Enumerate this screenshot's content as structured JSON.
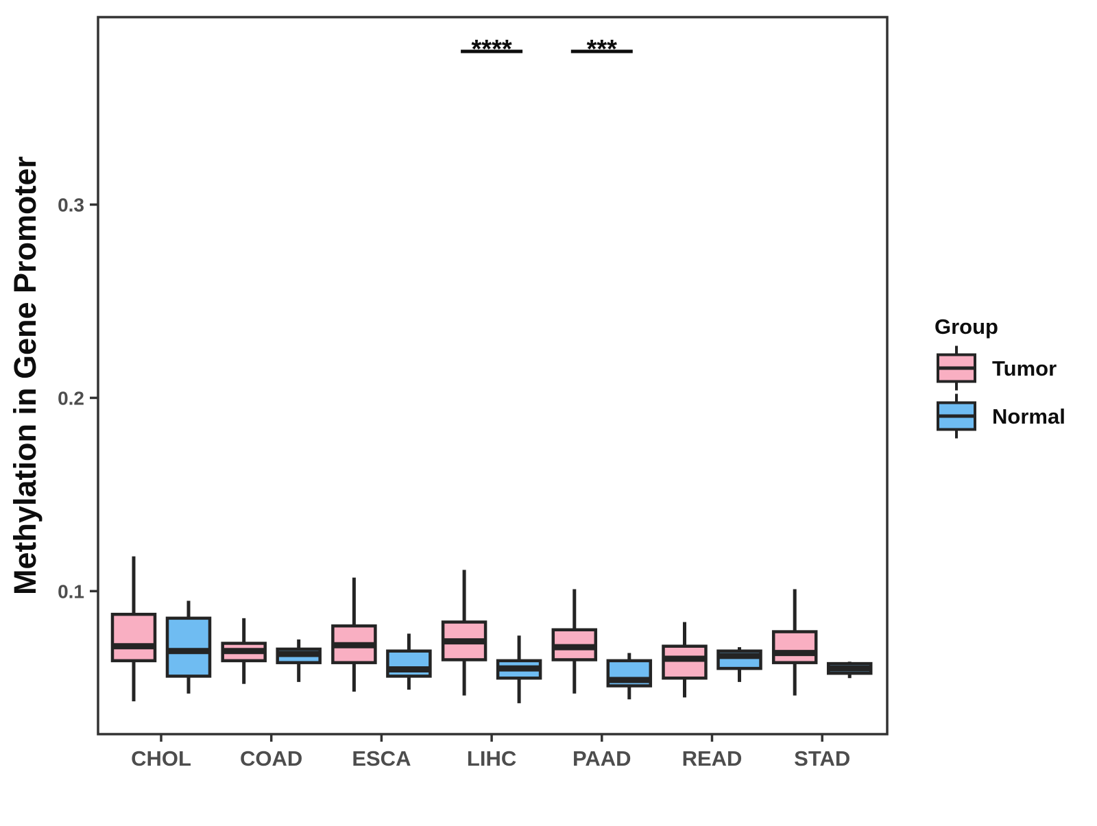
{
  "chart_data": {
    "type": "boxplot",
    "title": "",
    "xlabel": "",
    "ylabel": "Methylation in Gene Promoter",
    "categories": [
      "CHOL",
      "COAD",
      "ESCA",
      "LIHC",
      "PAAD",
      "READ",
      "STAD"
    ],
    "series": [
      {
        "name": "Tumor",
        "color": "#F9AFC2",
        "boxes": [
          {
            "category": "CHOL",
            "low": 0.043,
            "q1": 0.064,
            "median": 0.0715,
            "q3": 0.088,
            "high": 0.118
          },
          {
            "category": "COAD",
            "low": 0.052,
            "q1": 0.064,
            "median": 0.069,
            "q3": 0.073,
            "high": 0.086
          },
          {
            "category": "ESCA",
            "low": 0.048,
            "q1": 0.063,
            "median": 0.072,
            "q3": 0.082,
            "high": 0.107
          },
          {
            "category": "LIHC",
            "low": 0.046,
            "q1": 0.0645,
            "median": 0.074,
            "q3": 0.084,
            "high": 0.111
          },
          {
            "category": "PAAD",
            "low": 0.047,
            "q1": 0.0645,
            "median": 0.071,
            "q3": 0.08,
            "high": 0.101
          },
          {
            "category": "READ",
            "low": 0.045,
            "q1": 0.055,
            "median": 0.065,
            "q3": 0.0715,
            "high": 0.084
          },
          {
            "category": "STAD",
            "low": 0.046,
            "q1": 0.063,
            "median": 0.068,
            "q3": 0.079,
            "high": 0.101
          }
        ]
      },
      {
        "name": "Normal",
        "color": "#6FBCF2",
        "boxes": [
          {
            "category": "CHOL",
            "low": 0.047,
            "q1": 0.056,
            "median": 0.069,
            "q3": 0.086,
            "high": 0.095
          },
          {
            "category": "COAD",
            "low": 0.053,
            "q1": 0.063,
            "median": 0.0675,
            "q3": 0.07,
            "high": 0.075
          },
          {
            "category": "ESCA",
            "low": 0.049,
            "q1": 0.056,
            "median": 0.0595,
            "q3": 0.069,
            "high": 0.078
          },
          {
            "category": "LIHC",
            "low": 0.042,
            "q1": 0.055,
            "median": 0.06,
            "q3": 0.064,
            "high": 0.077
          },
          {
            "category": "PAAD",
            "low": 0.044,
            "q1": 0.051,
            "median": 0.054,
            "q3": 0.064,
            "high": 0.068
          },
          {
            "category": "READ",
            "low": 0.053,
            "q1": 0.06,
            "median": 0.0665,
            "q3": 0.069,
            "high": 0.071
          },
          {
            "category": "STAD",
            "low": 0.055,
            "q1": 0.0575,
            "median": 0.06,
            "q3": 0.0625,
            "high": 0.0635
          }
        ]
      }
    ],
    "yticks": [
      0.1,
      0.2,
      0.3
    ],
    "ytick_labels": [
      "0.1",
      "0.2",
      "0.3"
    ],
    "ylim": [
      0.026,
      0.397
    ],
    "grid": false,
    "legend": {
      "title": "Group",
      "position": "right",
      "entries": [
        {
          "label": "Tumor",
          "color": "#F9AFC2"
        },
        {
          "label": "Normal",
          "color": "#6FBCF2"
        }
      ]
    },
    "annotations": [
      {
        "category": "LIHC",
        "label": "****"
      },
      {
        "category": "PAAD",
        "label": "***"
      }
    ]
  },
  "colors": {
    "tumor_fill": "#F9AFC2",
    "normal_fill": "#6FBCF2",
    "box_stroke": "#242424",
    "panel_border": "#333333",
    "axis_text": "#4d4d4d",
    "title_text": "#0d0d0d",
    "background": "#ffffff"
  }
}
